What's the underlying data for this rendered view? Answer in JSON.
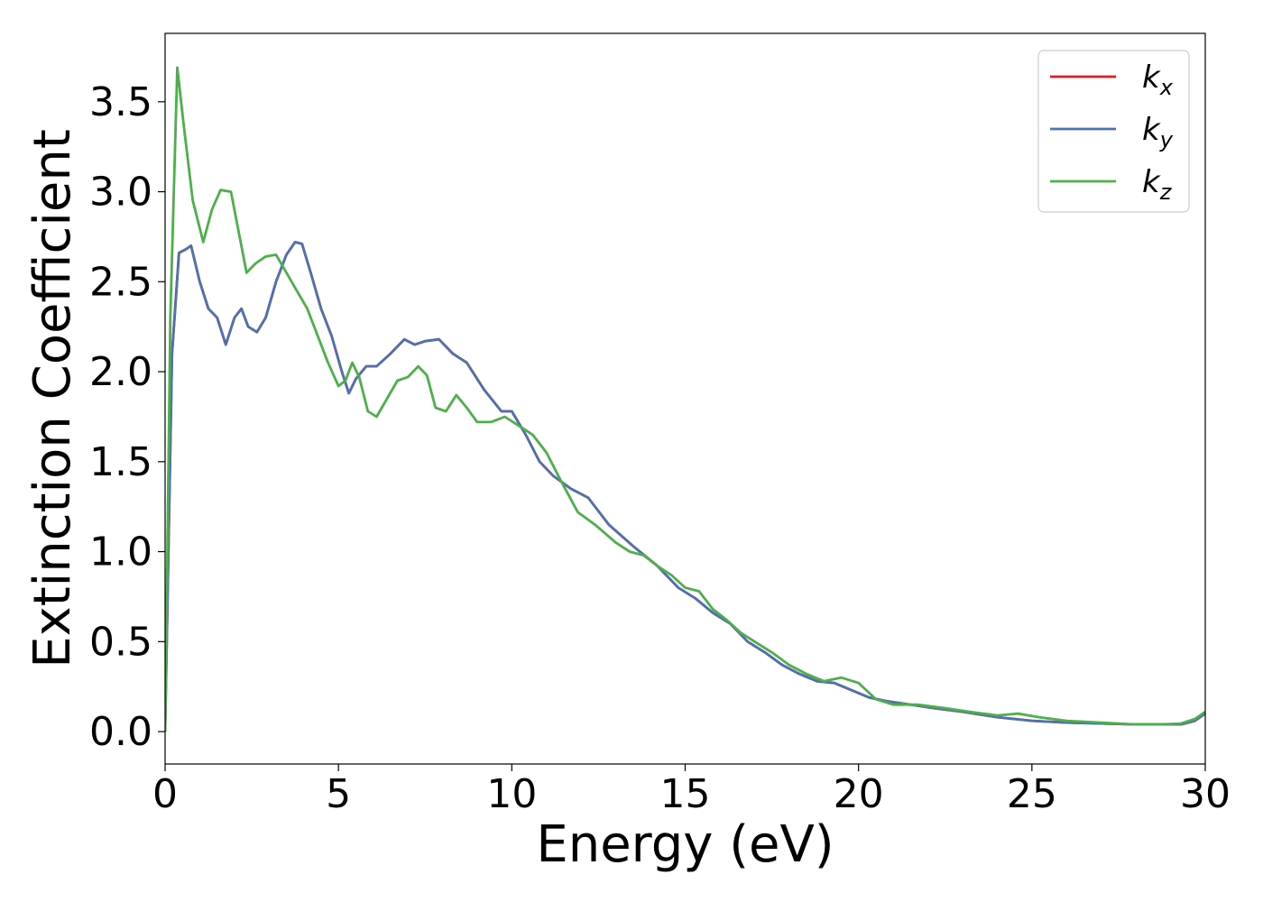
{
  "chart_data": {
    "type": "line",
    "xlabel": "Energy (eV)",
    "ylabel": "Extinction Coefficient",
    "xlim": [
      0,
      30
    ],
    "ylim": [
      -0.18,
      3.88
    ],
    "xticks": [
      {
        "value": 0,
        "label": "0"
      },
      {
        "value": 5,
        "label": "5"
      },
      {
        "value": 10,
        "label": "10"
      },
      {
        "value": 15,
        "label": "15"
      },
      {
        "value": 20,
        "label": "20"
      },
      {
        "value": 25,
        "label": "25"
      },
      {
        "value": 30,
        "label": "30"
      }
    ],
    "yticks": [
      {
        "value": 0.0,
        "label": "0.0"
      },
      {
        "value": 0.5,
        "label": "0.5"
      },
      {
        "value": 1.0,
        "label": "1.0"
      },
      {
        "value": 1.5,
        "label": "1.5"
      },
      {
        "value": 2.0,
        "label": "2.0"
      },
      {
        "value": 2.5,
        "label": "2.5"
      },
      {
        "value": 3.0,
        "label": "3.0"
      },
      {
        "value": 3.5,
        "label": "3.5"
      }
    ],
    "grid": false,
    "legend_position": "top-right",
    "series": [
      {
        "name": "k",
        "subscript": "x",
        "color": "#e41a1c",
        "x": [
          0,
          0.2,
          0.4,
          0.6,
          0.75,
          1.0,
          1.25,
          1.5,
          1.75,
          2.0,
          2.2,
          2.4,
          2.65,
          2.9,
          3.2,
          3.5,
          3.75,
          3.95,
          4.2,
          4.5,
          4.8,
          5.1,
          5.3,
          5.5,
          5.8,
          6.1,
          6.5,
          6.9,
          7.2,
          7.5,
          7.9,
          8.3,
          8.7,
          9.2,
          9.7,
          10.0,
          10.4,
          10.8,
          11.2,
          11.7,
          12.2,
          12.8,
          13.5,
          14.2,
          14.8,
          15.3,
          15.8,
          16.3,
          16.8,
          17.3,
          17.8,
          18.3,
          18.8,
          19.3,
          19.8,
          20.3,
          20.8,
          21.5,
          22.2,
          23.0,
          24.0,
          25.0,
          26.0,
          27.0,
          28.0,
          28.7,
          29.3,
          29.7,
          30.0
        ],
        "y": [
          0.0,
          2.1,
          2.66,
          2.68,
          2.7,
          2.5,
          2.35,
          2.3,
          2.15,
          2.3,
          2.35,
          2.25,
          2.22,
          2.3,
          2.5,
          2.65,
          2.72,
          2.71,
          2.55,
          2.35,
          2.2,
          2.0,
          1.88,
          1.96,
          2.03,
          2.03,
          2.1,
          2.18,
          2.15,
          2.17,
          2.18,
          2.1,
          2.05,
          1.9,
          1.78,
          1.78,
          1.65,
          1.5,
          1.42,
          1.35,
          1.3,
          1.15,
          1.03,
          0.92,
          0.8,
          0.74,
          0.66,
          0.6,
          0.5,
          0.44,
          0.37,
          0.32,
          0.28,
          0.27,
          0.23,
          0.19,
          0.17,
          0.15,
          0.13,
          0.11,
          0.08,
          0.06,
          0.05,
          0.045,
          0.04,
          0.04,
          0.04,
          0.06,
          0.1
        ]
      },
      {
        "name": "k",
        "subscript": "y",
        "color": "#4c72b0",
        "x": [
          0,
          0.2,
          0.4,
          0.6,
          0.75,
          1.0,
          1.25,
          1.5,
          1.75,
          2.0,
          2.2,
          2.4,
          2.65,
          2.9,
          3.2,
          3.5,
          3.75,
          3.95,
          4.2,
          4.5,
          4.8,
          5.1,
          5.3,
          5.5,
          5.8,
          6.1,
          6.5,
          6.9,
          7.2,
          7.5,
          7.9,
          8.3,
          8.7,
          9.2,
          9.7,
          10.0,
          10.4,
          10.8,
          11.2,
          11.7,
          12.2,
          12.8,
          13.5,
          14.2,
          14.8,
          15.3,
          15.8,
          16.3,
          16.8,
          17.3,
          17.8,
          18.3,
          18.8,
          19.3,
          19.8,
          20.3,
          20.8,
          21.5,
          22.2,
          23.0,
          24.0,
          25.0,
          26.0,
          27.0,
          28.0,
          28.7,
          29.3,
          29.7,
          30.0
        ],
        "y": [
          0.0,
          2.1,
          2.66,
          2.68,
          2.7,
          2.5,
          2.35,
          2.3,
          2.15,
          2.3,
          2.35,
          2.25,
          2.22,
          2.3,
          2.5,
          2.65,
          2.72,
          2.71,
          2.55,
          2.35,
          2.2,
          2.0,
          1.88,
          1.96,
          2.03,
          2.03,
          2.1,
          2.18,
          2.15,
          2.17,
          2.18,
          2.1,
          2.05,
          1.9,
          1.78,
          1.78,
          1.65,
          1.5,
          1.42,
          1.35,
          1.3,
          1.15,
          1.03,
          0.92,
          0.8,
          0.74,
          0.66,
          0.6,
          0.5,
          0.44,
          0.37,
          0.32,
          0.28,
          0.27,
          0.23,
          0.19,
          0.17,
          0.15,
          0.13,
          0.11,
          0.08,
          0.06,
          0.05,
          0.045,
          0.04,
          0.04,
          0.04,
          0.06,
          0.1
        ]
      },
      {
        "name": "k",
        "subscript": "z",
        "color": "#4daf4a",
        "x": [
          0,
          0.15,
          0.35,
          0.55,
          0.8,
          1.1,
          1.35,
          1.6,
          1.9,
          2.1,
          2.35,
          2.6,
          2.9,
          3.2,
          3.5,
          3.8,
          4.1,
          4.4,
          4.7,
          5.0,
          5.2,
          5.4,
          5.6,
          5.85,
          6.1,
          6.4,
          6.7,
          7.0,
          7.3,
          7.55,
          7.8,
          8.1,
          8.4,
          8.7,
          9.0,
          9.4,
          9.8,
          10.2,
          10.6,
          11.0,
          11.4,
          11.9,
          12.4,
          13.0,
          13.4,
          13.8,
          14.2,
          14.6,
          15.0,
          15.4,
          15.8,
          16.2,
          16.6,
          17.0,
          17.5,
          18.0,
          18.5,
          19.0,
          19.5,
          20.0,
          20.5,
          21.0,
          21.7,
          22.5,
          23.2,
          24.0,
          24.6,
          25.2,
          26.0,
          27.0,
          28.0,
          28.7,
          29.3,
          29.7,
          30.0
        ],
        "y": [
          0.0,
          2.3,
          3.69,
          3.35,
          2.95,
          2.72,
          2.9,
          3.01,
          3.0,
          2.8,
          2.55,
          2.6,
          2.64,
          2.65,
          2.55,
          2.45,
          2.35,
          2.2,
          2.05,
          1.92,
          1.95,
          2.05,
          1.97,
          1.78,
          1.75,
          1.85,
          1.95,
          1.97,
          2.03,
          1.98,
          1.8,
          1.78,
          1.87,
          1.8,
          1.72,
          1.72,
          1.75,
          1.7,
          1.65,
          1.55,
          1.4,
          1.22,
          1.15,
          1.05,
          1.0,
          0.98,
          0.92,
          0.87,
          0.8,
          0.78,
          0.68,
          0.62,
          0.55,
          0.5,
          0.44,
          0.37,
          0.32,
          0.28,
          0.3,
          0.27,
          0.18,
          0.15,
          0.15,
          0.13,
          0.11,
          0.09,
          0.1,
          0.08,
          0.06,
          0.05,
          0.04,
          0.04,
          0.045,
          0.07,
          0.11
        ]
      }
    ]
  }
}
